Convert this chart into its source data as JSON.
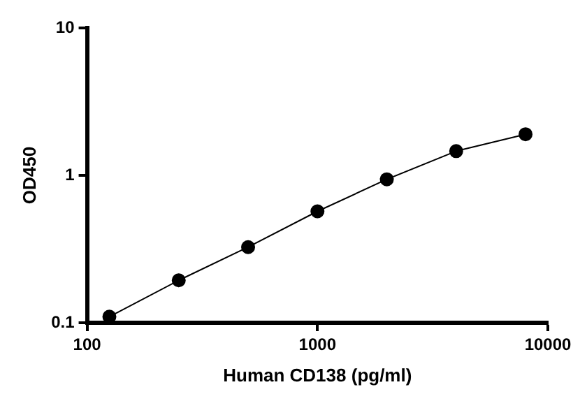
{
  "chart_data": {
    "type": "line",
    "xlabel": "Human CD138 (pg/ml)",
    "ylabel": "OD450",
    "x": [
      125,
      250,
      500,
      1000,
      2000,
      4000,
      8000
    ],
    "series": [
      {
        "color": "#000000",
        "values": [
          0.11,
          0.194,
          0.326,
          0.57,
          0.94,
          1.46,
          1.9
        ]
      }
    ],
    "log": "xy",
    "xlim": [
      100,
      10000
    ],
    "xticks": [
      100,
      1000,
      10000
    ],
    "ylim": [
      0.1,
      10
    ],
    "yticks": [
      0.1,
      1,
      10
    ],
    "grid": false,
    "legend": false,
    "marker": "circle",
    "line_style": "solid"
  }
}
